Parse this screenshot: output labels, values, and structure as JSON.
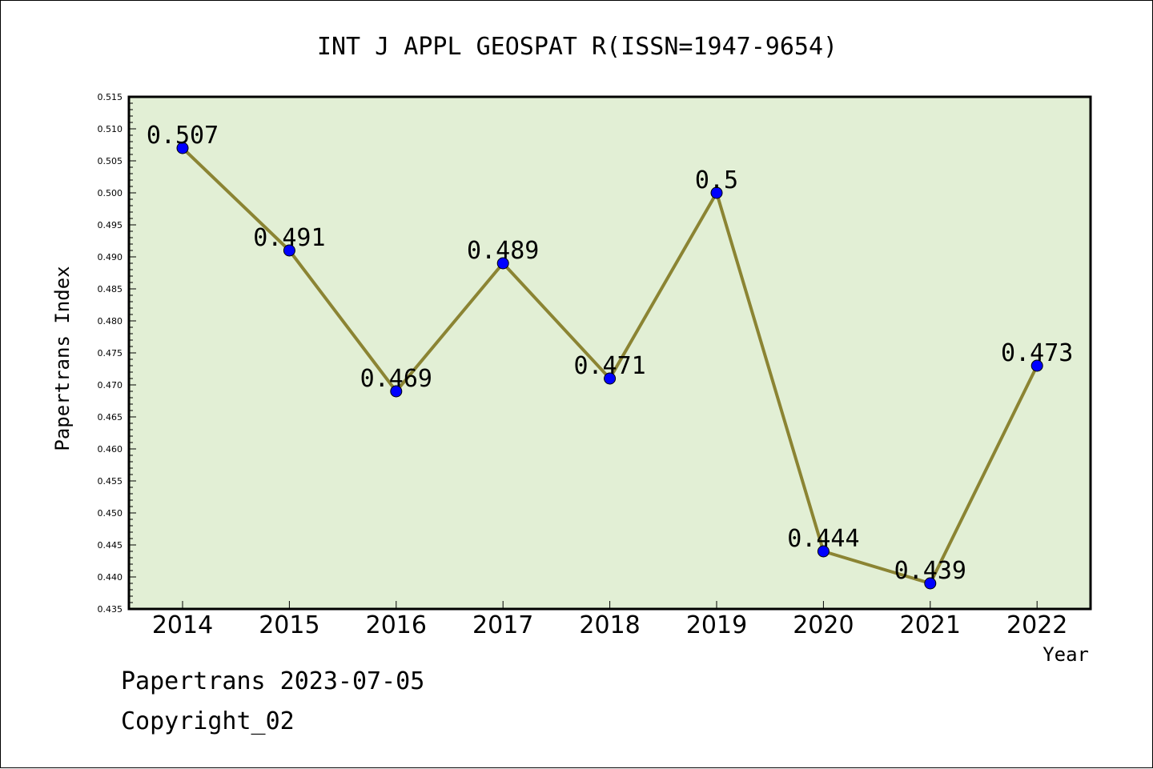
{
  "chart_data": {
    "type": "line",
    "title": "INT J APPL GEOSPAT R(ISSN=1947-9654)",
    "xlabel": "Year",
    "ylabel": "Papertrans Index",
    "categories": [
      "2014",
      "2015",
      "2016",
      "2017",
      "2018",
      "2019",
      "2020",
      "2021",
      "2022"
    ],
    "series": [
      {
        "values": [
          0.507,
          0.491,
          0.469,
          0.489,
          0.471,
          0.5,
          0.444,
          0.439,
          0.473
        ]
      }
    ],
    "data_labels": [
      "0.507",
      "0.491",
      "0.469",
      "0.489",
      "0.471",
      "0.5",
      "0.444",
      "0.439",
      "0.473"
    ],
    "ylim": [
      0.435,
      0.515
    ],
    "yticks": [
      "0.435",
      "0.440",
      "0.445",
      "0.450",
      "0.455",
      "0.460",
      "0.465",
      "0.470",
      "0.475",
      "0.480",
      "0.485",
      "0.490",
      "0.495",
      "0.500",
      "0.505",
      "0.510",
      "0.515"
    ],
    "grid": false,
    "colors": {
      "plot_bg": "#e2efd5",
      "line": "#8b8433",
      "marker": "#0000ff"
    }
  },
  "footer": {
    "line1": "Papertrans 2023-07-05",
    "line2": "Copyright_02"
  }
}
